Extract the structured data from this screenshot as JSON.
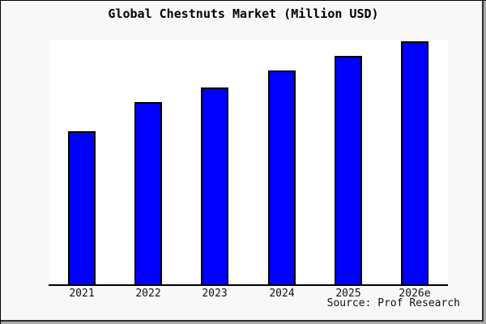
{
  "window": {
    "bg_color": "#f8f8f8",
    "frame_border_color": "#000000"
  },
  "title": "Global Chestnuts Market (Million USD)",
  "source_credit": "Source: Prof Research",
  "chart_data": {
    "type": "bar",
    "title": "Global Chestnuts Market (Million USD)",
    "categories": [
      "2021",
      "2022",
      "2023",
      "2024",
      "2025",
      "2026e"
    ],
    "values": [
      63,
      75,
      81,
      88,
      94,
      100
    ],
    "xlabel": "",
    "ylabel": "",
    "ylim": [
      0,
      100
    ],
    "grid": false,
    "legend_position": "none",
    "y_axis_visible": false,
    "x_axis_visible": true,
    "plot_bg": "#ffffff",
    "bar_color": "#0000ff",
    "bar_border_color": "#000000",
    "axis_color": "#000000",
    "source": "Source: Prof Research",
    "value_note": "No y-axis scale shown in image; values are relative bar heights normalized so 2026e = 100"
  }
}
